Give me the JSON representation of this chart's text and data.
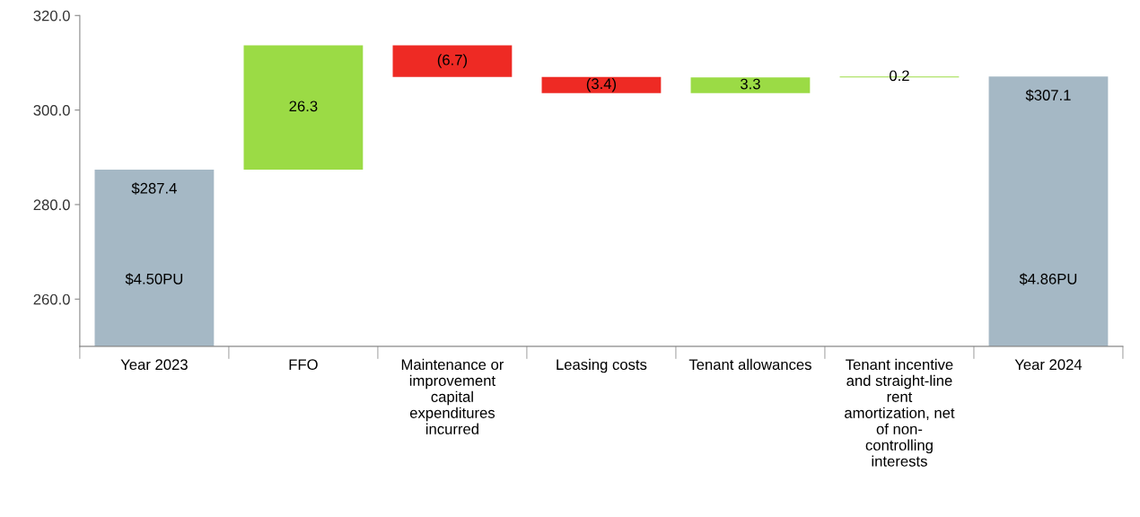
{
  "chart_data": {
    "type": "bar",
    "categories": [
      "Year 2023",
      "FFO",
      "Maintenance or improvement capital expenditures incurred",
      "Leasing costs",
      "Tenant allowances",
      "Tenant incentive and straight-line rent amortization, net of non-controlling interests",
      "Year 2024"
    ],
    "values": [
      287.4,
      26.3,
      -6.7,
      -3.4,
      3.3,
      0.2,
      307.1
    ],
    "base": [
      null,
      287.4,
      313.7,
      307.0,
      303.6,
      306.9,
      null
    ],
    "colors": [
      "#a5b8c5",
      "#9bdb45",
      "#ee2a24",
      "#ee2a24",
      "#9bdb45",
      "#9bdb45",
      "#a5b8c5"
    ],
    "value_labels": [
      "$287.4",
      "26.3",
      "(6.7)",
      "(3.4)",
      "3.3",
      "0.2",
      "$307.1"
    ],
    "annotations": [
      "$4.50PU",
      "$4.86PU"
    ],
    "ylim": [
      250,
      320
    ],
    "yticks": [
      {
        "value": 260,
        "label": "260.0"
      },
      {
        "value": 280,
        "label": "280.0"
      },
      {
        "value": 300,
        "label": "300.0"
      },
      {
        "value": 320,
        "label": "320.0"
      }
    ],
    "grid": false
  }
}
